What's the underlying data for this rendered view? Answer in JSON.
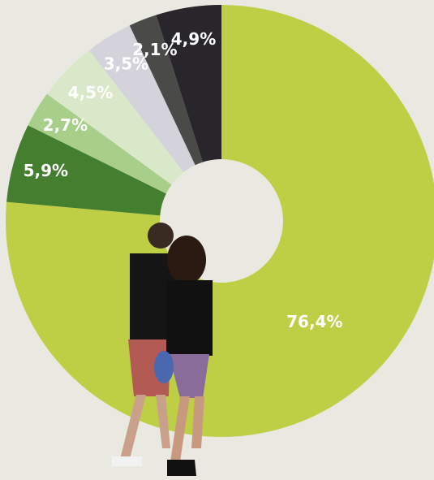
{
  "chart_data": {
    "type": "donut",
    "categories": [
      null,
      null,
      null,
      null,
      null,
      null,
      null
    ],
    "values": [
      76.4,
      5.9,
      2.7,
      4.5,
      3.5,
      2.1,
      4.9
    ],
    "value_labels": [
      "76,4%",
      "5,9%",
      "2,7%",
      "4,5%",
      "3,5%",
      "2,1%",
      "4,9%"
    ],
    "colors": [
      "#bfcf45",
      "#447f2f",
      "#a7cf8a",
      "#d9e8c8",
      "#d4d2da",
      "#4a4a48",
      "#28252b"
    ]
  }
}
